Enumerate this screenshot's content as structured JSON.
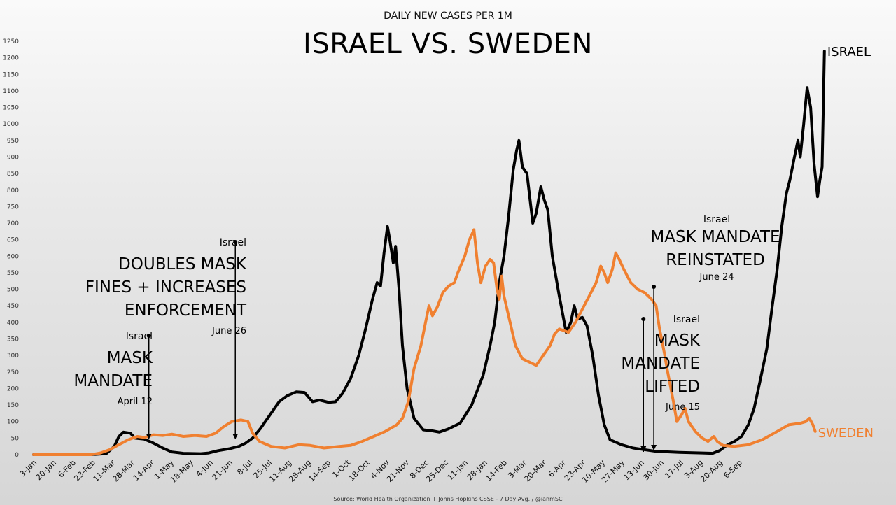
{
  "chart_data": {
    "type": "line",
    "subtitle": "DAILY NEW CASES PER 1M",
    "title": "ISRAEL VS. SWEDEN",
    "source": "Source: World Health Organization + Johns Hopkins CSSE - 7 Day Avg. / @ianmSC",
    "xlabel": "",
    "ylabel": "",
    "ylim": [
      0,
      1250
    ],
    "yticks": [
      0,
      50,
      100,
      150,
      200,
      250,
      300,
      350,
      400,
      450,
      500,
      550,
      600,
      650,
      700,
      750,
      800,
      850,
      900,
      950,
      1000,
      1050,
      1100,
      1150,
      1200,
      1250
    ],
    "xlim_days": [
      0,
      620
    ],
    "grid": false,
    "x_tick_labels": [
      "3-Jan",
      "20-Jan",
      "6-Feb",
      "23-Feb",
      "11-Mar",
      "28-Mar",
      "14-Apr",
      "1-May",
      "18-May",
      "4-Jun",
      "21-Jun",
      "8-Jul",
      "25-Jul",
      "11-Aug",
      "28-Aug",
      "14-Sep",
      "1-Oct",
      "18-Oct",
      "4-Nov",
      "21-Nov",
      "8-Dec",
      "25-Dec",
      "11-Jan",
      "28-Jan",
      "14-Feb",
      "3-Mar",
      "20-Mar",
      "6-Apr",
      "23-Apr",
      "10-May",
      "27-May",
      "13-Jun",
      "30-Jun",
      "17-Jul",
      "3-Aug",
      "20-Aug",
      "6-Sep"
    ],
    "x_tick_step_days": 17,
    "series": [
      {
        "name": "ISRAEL",
        "label": "ISRAEL",
        "color": "#000000",
        "points": [
          [
            0,
            0
          ],
          [
            50,
            0
          ],
          [
            63,
            3
          ],
          [
            70,
            25
          ],
          [
            74,
            55
          ],
          [
            78,
            68
          ],
          [
            84,
            65
          ],
          [
            88,
            50
          ],
          [
            96,
            47
          ],
          [
            104,
            35
          ],
          [
            112,
            20
          ],
          [
            120,
            8
          ],
          [
            130,
            4
          ],
          [
            145,
            3
          ],
          [
            152,
            5
          ],
          [
            160,
            12
          ],
          [
            170,
            18
          ],
          [
            178,
            25
          ],
          [
            184,
            35
          ],
          [
            190,
            50
          ],
          [
            197,
            80
          ],
          [
            205,
            120
          ],
          [
            213,
            160
          ],
          [
            220,
            178
          ],
          [
            228,
            190
          ],
          [
            235,
            188
          ],
          [
            242,
            160
          ],
          [
            248,
            165
          ],
          [
            256,
            158
          ],
          [
            262,
            160
          ],
          [
            268,
            185
          ],
          [
            275,
            230
          ],
          [
            282,
            300
          ],
          [
            288,
            380
          ],
          [
            294,
            470
          ],
          [
            298,
            520
          ],
          [
            301,
            510
          ],
          [
            304,
            610
          ],
          [
            307,
            690
          ],
          [
            309,
            650
          ],
          [
            312,
            580
          ],
          [
            314,
            630
          ],
          [
            317,
            500
          ],
          [
            320,
            330
          ],
          [
            324,
            200
          ],
          [
            330,
            110
          ],
          [
            338,
            75
          ],
          [
            346,
            72
          ],
          [
            352,
            68
          ],
          [
            360,
            78
          ],
          [
            370,
            95
          ],
          [
            380,
            150
          ],
          [
            390,
            240
          ],
          [
            396,
            330
          ],
          [
            400,
            400
          ],
          [
            404,
            520
          ],
          [
            408,
            600
          ],
          [
            412,
            720
          ],
          [
            416,
            860
          ],
          [
            419,
            920
          ],
          [
            421,
            950
          ],
          [
            424,
            870
          ],
          [
            428,
            850
          ],
          [
            433,
            700
          ],
          [
            436,
            730
          ],
          [
            440,
            810
          ],
          [
            443,
            770
          ],
          [
            446,
            740
          ],
          [
            450,
            600
          ],
          [
            456,
            480
          ],
          [
            462,
            370
          ],
          [
            466,
            400
          ],
          [
            469,
            450
          ],
          [
            472,
            410
          ],
          [
            476,
            415
          ],
          [
            480,
            390
          ],
          [
            485,
            300
          ],
          [
            490,
            180
          ],
          [
            495,
            90
          ],
          [
            500,
            45
          ],
          [
            510,
            30
          ],
          [
            520,
            20
          ],
          [
            540,
            10
          ],
          [
            560,
            7
          ],
          [
            580,
            5
          ],
          [
            589,
            4
          ],
          [
            595,
            12
          ],
          [
            602,
            30
          ],
          [
            608,
            40
          ],
          [
            614,
            55
          ],
          [
            620,
            90
          ],
          [
            625,
            140
          ],
          [
            630,
            220
          ],
          [
            636,
            320
          ],
          [
            640,
            430
          ],
          [
            645,
            560
          ],
          [
            649,
            690
          ],
          [
            653,
            790
          ],
          [
            656,
            830
          ],
          [
            660,
            900
          ],
          [
            663,
            950
          ],
          [
            665,
            900
          ],
          [
            668,
            1000
          ],
          [
            671,
            1110
          ],
          [
            674,
            1050
          ],
          [
            677,
            880
          ],
          [
            680,
            780
          ],
          [
            682,
            830
          ],
          [
            684,
            870
          ],
          [
            686,
            1220
          ]
        ]
      },
      {
        "name": "SWEDEN",
        "label": "SWEDEN",
        "color": "#F08030",
        "points": [
          [
            0,
            0
          ],
          [
            50,
            0
          ],
          [
            58,
            5
          ],
          [
            66,
            15
          ],
          [
            74,
            30
          ],
          [
            82,
            45
          ],
          [
            90,
            55
          ],
          [
            96,
            52
          ],
          [
            104,
            60
          ],
          [
            112,
            58
          ],
          [
            120,
            62
          ],
          [
            130,
            55
          ],
          [
            140,
            58
          ],
          [
            150,
            55
          ],
          [
            158,
            65
          ],
          [
            165,
            85
          ],
          [
            172,
            100
          ],
          [
            180,
            105
          ],
          [
            186,
            100
          ],
          [
            190,
            65
          ],
          [
            196,
            40
          ],
          [
            206,
            25
          ],
          [
            218,
            20
          ],
          [
            230,
            30
          ],
          [
            240,
            28
          ],
          [
            252,
            20
          ],
          [
            265,
            25
          ],
          [
            275,
            28
          ],
          [
            285,
            40
          ],
          [
            295,
            55
          ],
          [
            305,
            70
          ],
          [
            315,
            90
          ],
          [
            320,
            110
          ],
          [
            325,
            160
          ],
          [
            330,
            260
          ],
          [
            336,
            330
          ],
          [
            340,
            400
          ],
          [
            343,
            450
          ],
          [
            346,
            420
          ],
          [
            350,
            445
          ],
          [
            355,
            490
          ],
          [
            360,
            510
          ],
          [
            365,
            520
          ],
          [
            368,
            550
          ],
          [
            374,
            600
          ],
          [
            378,
            650
          ],
          [
            382,
            680
          ],
          [
            385,
            580
          ],
          [
            388,
            520
          ],
          [
            392,
            570
          ],
          [
            396,
            590
          ],
          [
            399,
            580
          ],
          [
            402,
            500
          ],
          [
            404,
            470
          ],
          [
            406,
            540
          ],
          [
            408,
            480
          ],
          [
            412,
            420
          ],
          [
            418,
            330
          ],
          [
            424,
            290
          ],
          [
            430,
            280
          ],
          [
            436,
            270
          ],
          [
            442,
            300
          ],
          [
            448,
            330
          ],
          [
            452,
            365
          ],
          [
            456,
            380
          ],
          [
            460,
            375
          ],
          [
            464,
            370
          ],
          [
            470,
            400
          ],
          [
            476,
            440
          ],
          [
            482,
            480
          ],
          [
            488,
            520
          ],
          [
            492,
            570
          ],
          [
            495,
            550
          ],
          [
            498,
            520
          ],
          [
            502,
            560
          ],
          [
            505,
            610
          ],
          [
            508,
            590
          ],
          [
            512,
            560
          ],
          [
            518,
            520
          ],
          [
            524,
            500
          ],
          [
            530,
            490
          ],
          [
            536,
            470
          ],
          [
            540,
            450
          ],
          [
            543,
            380
          ],
          [
            547,
            310
          ],
          [
            550,
            250
          ],
          [
            555,
            160
          ],
          [
            558,
            100
          ],
          [
            562,
            120
          ],
          [
            565,
            140
          ],
          [
            568,
            100
          ],
          [
            574,
            70
          ],
          [
            580,
            50
          ],
          [
            585,
            40
          ],
          [
            590,
            55
          ],
          [
            593,
            40
          ],
          [
            598,
            28
          ],
          [
            608,
            25
          ],
          [
            620,
            30
          ],
          [
            632,
            45
          ],
          [
            645,
            70
          ],
          [
            655,
            90
          ],
          [
            665,
            95
          ],
          [
            670,
            100
          ],
          [
            673,
            110
          ],
          [
            676,
            90
          ],
          [
            678,
            70
          ]
        ]
      }
    ],
    "annotations": [
      {
        "country": "Israel",
        "lines": [
          "MASK",
          "MANDATE"
        ],
        "date": "April 12",
        "day": 100
      },
      {
        "country": "Israel",
        "lines": [
          "DOUBLES MASK",
          "FINES + INCREASES",
          "ENFORCEMENT"
        ],
        "date": "June 26",
        "day": 175
      },
      {
        "country": "Israel",
        "lines": [
          "MASK",
          "MANDATE",
          "LIFTED"
        ],
        "date": "June 15",
        "day": 529
      },
      {
        "country": "Israel",
        "lines": [
          "MASK MANDATE",
          "REINSTATED"
        ],
        "date": "June 24",
        "day": 538
      }
    ]
  }
}
